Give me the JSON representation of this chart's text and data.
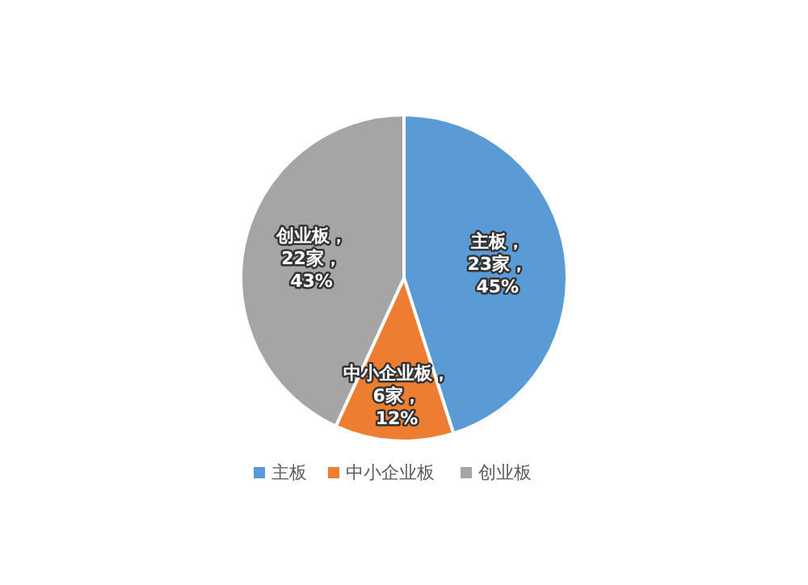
{
  "chart_data": {
    "type": "pie",
    "categories": [
      "主板",
      "中小企业板",
      "创业板"
    ],
    "values": [
      23,
      6,
      22
    ],
    "colors": [
      "#5b9bd5",
      "#ed7d31",
      "#a5a5a5"
    ],
    "value_labels": [
      "主板，23家，45%",
      "中小企业板，6家，12%",
      "创业板，22家，43%"
    ],
    "legend": "bottom"
  }
}
